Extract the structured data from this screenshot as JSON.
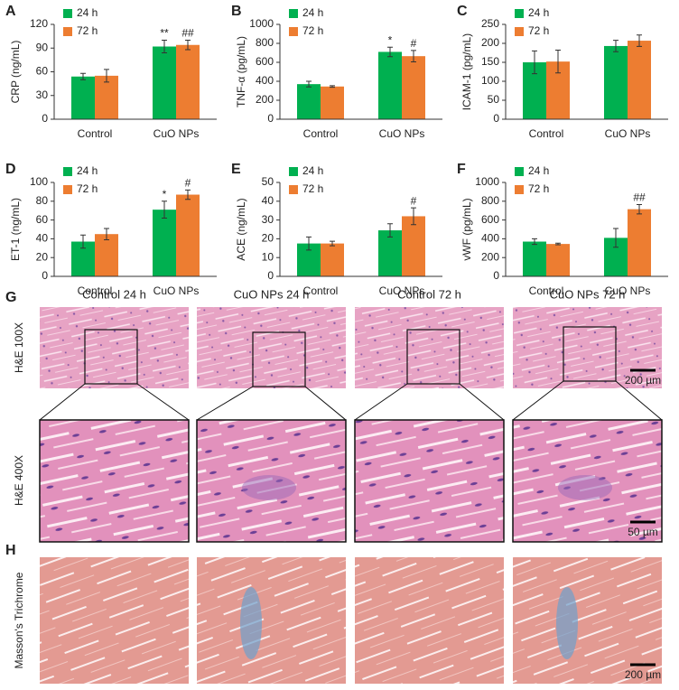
{
  "chart_data": [
    {
      "type": "bar",
      "panel": "A",
      "y_label": "CRP (ng/mL)",
      "categories": [
        "Control",
        "CuO NPs"
      ],
      "series": [
        {
          "name": "24 h",
          "color": "#00b050",
          "values": [
            54,
            92
          ],
          "errors": [
            4,
            8
          ],
          "annotations": [
            null,
            "**"
          ]
        },
        {
          "name": "72 h",
          "color": "#ed7d31",
          "values": [
            55,
            94
          ],
          "errors": [
            8,
            6
          ],
          "annotations": [
            null,
            "##"
          ]
        }
      ],
      "ylim": [
        0,
        120
      ],
      "yticks": [
        0,
        30,
        60,
        90,
        120
      ]
    },
    {
      "type": "bar",
      "panel": "B",
      "y_label": "TNF-α (pg/mL)",
      "categories": [
        "Control",
        "CuO NPs"
      ],
      "series": [
        {
          "name": "24 h",
          "color": "#00b050",
          "values": [
            370,
            710
          ],
          "errors": [
            30,
            50
          ],
          "annotations": [
            null,
            "*"
          ]
        },
        {
          "name": "72 h",
          "color": "#ed7d31",
          "values": [
            345,
            665
          ],
          "errors": [
            8,
            60
          ],
          "annotations": [
            null,
            "#"
          ]
        }
      ],
      "ylim": [
        0,
        1000
      ],
      "yticks": [
        0,
        200,
        400,
        600,
        800,
        1000
      ]
    },
    {
      "type": "bar",
      "panel": "C",
      "y_label": "ICAM-1 (pg/mL)",
      "categories": [
        "Control",
        "CuO NPs"
      ],
      "series": [
        {
          "name": "24 h",
          "color": "#00b050",
          "values": [
            150,
            193
          ],
          "errors": [
            30,
            15
          ]
        },
        {
          "name": "72 h",
          "color": "#ed7d31",
          "values": [
            152,
            207
          ],
          "errors": [
            30,
            15
          ]
        }
      ],
      "ylim": [
        0,
        250
      ],
      "yticks": [
        0,
        50,
        100,
        150,
        200,
        250
      ]
    },
    {
      "type": "bar",
      "panel": "D",
      "y_label": "ET-1 (ng/mL)",
      "categories": [
        "Control",
        "CuO NPs"
      ],
      "series": [
        {
          "name": "24 h",
          "color": "#00b050",
          "values": [
            37,
            71
          ],
          "errors": [
            7,
            9
          ],
          "annotations": [
            null,
            "*"
          ]
        },
        {
          "name": "72 h",
          "color": "#ed7d31",
          "values": [
            45,
            87
          ],
          "errors": [
            6,
            5
          ],
          "annotations": [
            null,
            "#"
          ]
        }
      ],
      "ylim": [
        0,
        100
      ],
      "yticks": [
        0,
        20,
        40,
        60,
        80,
        100
      ]
    },
    {
      "type": "bar",
      "panel": "E",
      "y_label": "ACE (ng/mL)",
      "categories": [
        "Control",
        "CuO NPs"
      ],
      "series": [
        {
          "name": "24 h",
          "color": "#00b050",
          "values": [
            17.5,
            24.5
          ],
          "errors": [
            3.5,
            3.5
          ]
        },
        {
          "name": "72 h",
          "color": "#ed7d31",
          "values": [
            17.5,
            32
          ],
          "errors": [
            1.2,
            4.5
          ],
          "annotations": [
            null,
            "#"
          ]
        }
      ],
      "ylim": [
        0,
        50
      ],
      "yticks": [
        0,
        10,
        20,
        30,
        40,
        50
      ]
    },
    {
      "type": "bar",
      "panel": "F",
      "y_label": "vWF (pg/mL)",
      "categories": [
        "Control",
        "CuO NPs"
      ],
      "series": [
        {
          "name": "24 h",
          "color": "#00b050",
          "values": [
            370,
            410
          ],
          "errors": [
            30,
            100
          ]
        },
        {
          "name": "72 h",
          "color": "#ed7d31",
          "values": [
            345,
            715
          ],
          "errors": [
            8,
            50
          ],
          "annotations": [
            null,
            "##"
          ]
        }
      ],
      "ylim": [
        0,
        1000
      ],
      "yticks": [
        0,
        200,
        400,
        600,
        800,
        1000
      ]
    }
  ],
  "histology": {
    "panel": "G",
    "columns": [
      "Control 24 h",
      "CuO NPs 24 h",
      "Control 72 h",
      "CuO NPs 72 h"
    ],
    "rows": [
      "H&E 100X",
      "H&E 400X"
    ],
    "scale_bars": [
      "200 µm",
      "50 µm"
    ]
  },
  "trichrome": {
    "panel": "H",
    "row": "Masson's Trichrome",
    "scale_bar": "200 µm"
  }
}
